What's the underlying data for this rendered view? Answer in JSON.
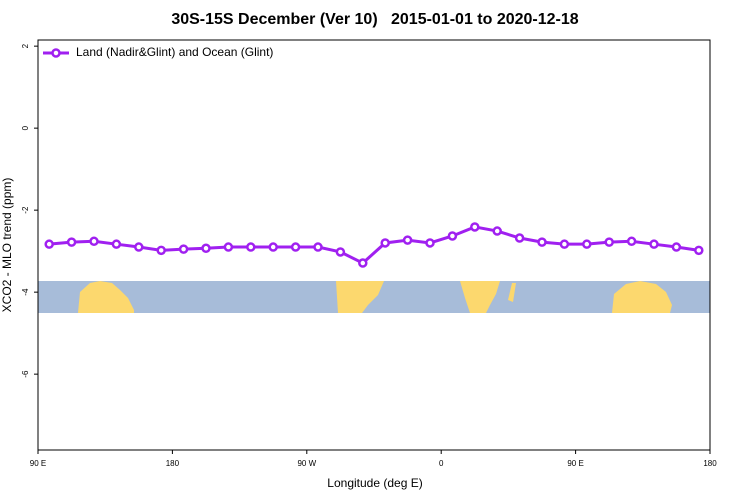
{
  "chart_data": {
    "type": "line",
    "title": "30S-15S December (Ver 10)   2015-01-01 to 2020-12-18",
    "x_label": "Longitude (deg E)",
    "y_label": "XCO2 - MLO trend (ppm)",
    "x": [
      97.5,
      112.5,
      127.5,
      142.5,
      157.5,
      172.5,
      187.5,
      202.5,
      217.5,
      232.5,
      247.5,
      262.5,
      277.5,
      292.5,
      307.5,
      322.5,
      337.5,
      352.5,
      367.5,
      382.5,
      397.5,
      412.5,
      427.5,
      442.5,
      457.5,
      472.5,
      487.5,
      502.5,
      517.5,
      532.5
    ],
    "series": [
      {
        "name": "Land (Nadir&Glint) and Ocean (Glint)",
        "color": "#a020f0",
        "values": [
          -2.83,
          -2.78,
          -2.76,
          -2.83,
          -2.9,
          -2.98,
          -2.95,
          -2.93,
          -2.9,
          -2.9,
          -2.9,
          -2.9,
          -2.9,
          -3.02,
          -3.29,
          -2.8,
          -2.73,
          -2.8,
          -2.63,
          -2.41,
          -2.51,
          -2.68,
          -2.78,
          -2.83,
          -2.83,
          -2.78,
          -2.76,
          -2.83,
          -2.9,
          -2.98
        ]
      }
    ],
    "xlim": [
      90,
      540
    ],
    "xticks": [
      {
        "value": 90,
        "label": "90 E"
      },
      180,
      {
        "value": 270,
        "label": "90 W"
      },
      0,
      {
        "value": 450,
        "label": "90 E"
      },
      {
        "value": 540,
        "label": "180"
      }
    ],
    "ylim": [
      -7.85,
      2.15
    ],
    "yticks": [
      2,
      0,
      -2,
      -4,
      -6
    ],
    "legend": "top-left"
  }
}
